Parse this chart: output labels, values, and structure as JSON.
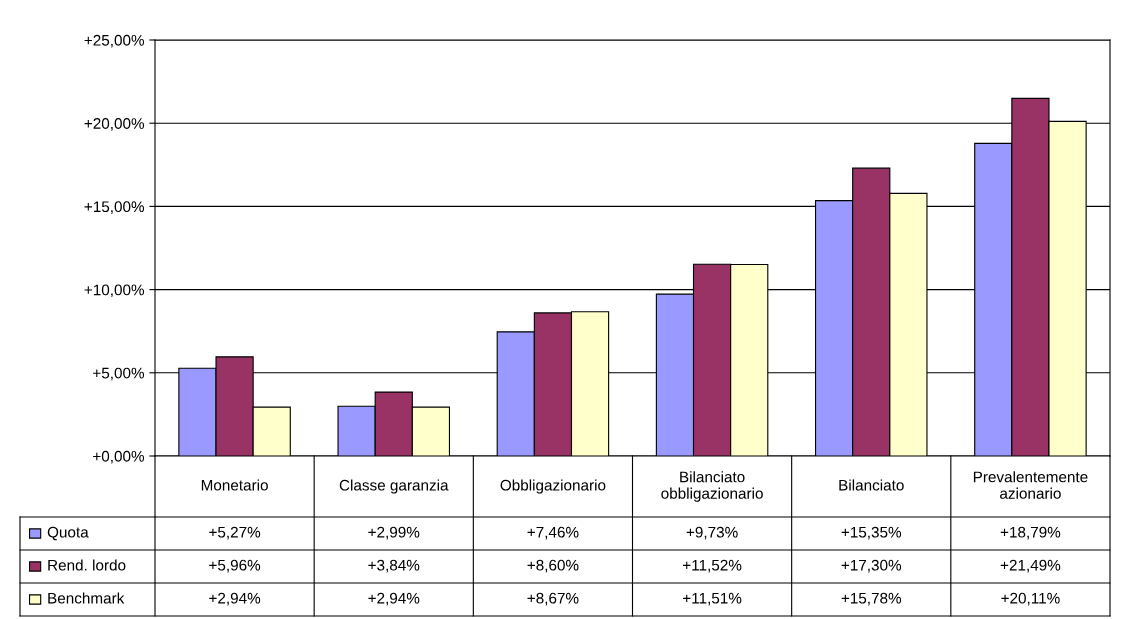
{
  "chart_data": {
    "type": "bar",
    "categories": [
      "Monetario",
      "Classe garanzia",
      "Obbligazionario",
      "Bilanciato\nobbligazionario",
      "Bilanciato",
      "Prevalentemente\nazionario"
    ],
    "series": [
      {
        "name": "Quota",
        "color": "#9999ff",
        "values": [
          5.27,
          2.99,
          7.46,
          9.73,
          15.35,
          18.79
        ],
        "value_labels": [
          "+5,27%",
          "+2,99%",
          "+7,46%",
          "+9,73%",
          "+15,35%",
          "+18,79%"
        ]
      },
      {
        "name": "Rend. lordo",
        "color": "#993366",
        "values": [
          5.96,
          3.84,
          8.6,
          11.52,
          17.3,
          21.49
        ],
        "value_labels": [
          "+5,96%",
          "+3,84%",
          "+8,60%",
          "+11,52%",
          "+17,30%",
          "+21,49%"
        ]
      },
      {
        "name": "Benchmark",
        "color": "#ffffcc",
        "values": [
          2.94,
          2.94,
          8.67,
          11.51,
          15.78,
          20.11
        ],
        "value_labels": [
          "+2,94%",
          "+2,94%",
          "+8,67%",
          "+11,51%",
          "+15,78%",
          "+20,11%"
        ]
      }
    ],
    "ylim": [
      0,
      25
    ],
    "yticks": [
      {
        "value": 0,
        "label": "+0,00%"
      },
      {
        "value": 5,
        "label": "+5,00%"
      },
      {
        "value": 10,
        "label": "+10,00%"
      },
      {
        "value": 15,
        "label": "+15,00%"
      },
      {
        "value": 20,
        "label": "+20,00%"
      },
      {
        "value": 25,
        "label": "+25,00%"
      }
    ],
    "grid": "y",
    "legend": "bottom left"
  }
}
